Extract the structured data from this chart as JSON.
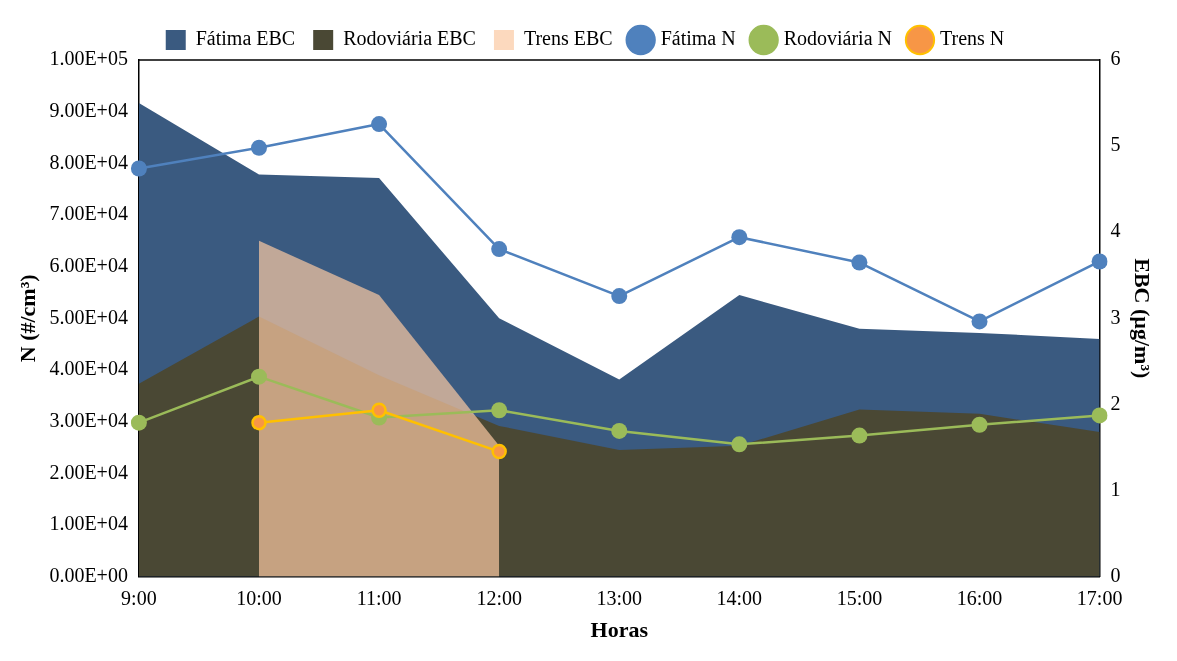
{
  "chart_data": {
    "type": "line",
    "xlabel": "Horas",
    "ylabel": "N (#/cm³)",
    "y2label": "EBC (µg/m³)",
    "categories": [
      "9:00",
      "10:00",
      "11:00",
      "12:00",
      "13:00",
      "14:00",
      "15:00",
      "16:00",
      "17:00"
    ],
    "ylim": [
      0,
      100000
    ],
    "yticks": [
      {
        "value": 0,
        "label": "0.00E+00"
      },
      {
        "value": 10000,
        "label": "1.00E+04"
      },
      {
        "value": 20000,
        "label": "2.00E+04"
      },
      {
        "value": 30000,
        "label": "3.00E+04"
      },
      {
        "value": 40000,
        "label": "4.00E+04"
      },
      {
        "value": 50000,
        "label": "5.00E+04"
      },
      {
        "value": 60000,
        "label": "6.00E+04"
      },
      {
        "value": 70000,
        "label": "7.00E+04"
      },
      {
        "value": 80000,
        "label": "8.00E+04"
      },
      {
        "value": 90000,
        "label": "9.00E+04"
      },
      {
        "value": 100000,
        "label": "1.00E+05"
      }
    ],
    "y2lim": [
      0,
      6
    ],
    "y2ticks": [
      0,
      1,
      2,
      3,
      4,
      5,
      6
    ],
    "grid": false,
    "legend": "top",
    "series": [
      {
        "name": "Fátima EBC",
        "type": "area",
        "axis": "y2",
        "color": "#3a5a80",
        "values": [
          5.5,
          4.67,
          4.63,
          3.0,
          2.29,
          3.27,
          2.88,
          2.83,
          2.76
        ]
      },
      {
        "name": "Rodoviária EBC",
        "type": "area",
        "axis": "y2",
        "color": "#4a4834",
        "values": [
          2.24,
          3.02,
          2.34,
          1.75,
          1.47,
          1.52,
          1.94,
          1.89,
          1.68
        ]
      },
      {
        "name": "Trens EBC",
        "type": "area",
        "axis": "y2",
        "color": "#fbc9a3",
        "values": [
          null,
          3.9,
          3.27,
          1.52,
          null,
          null,
          null,
          null,
          null
        ]
      },
      {
        "name": "Fátima N",
        "marker": "circle",
        "color": "#4f81bd",
        "values": [
          79000,
          83000,
          87600,
          63400,
          54300,
          65700,
          60800,
          49400,
          61000
        ]
      },
      {
        "name": "Rodoviária N",
        "marker": "circle",
        "color": "#9bbb59",
        "values": [
          29800,
          38700,
          30800,
          32200,
          28200,
          25600,
          27300,
          29400,
          31200
        ]
      },
      {
        "name": "Trens N",
        "marker": "circle",
        "color": "#ffc000",
        "values": [
          null,
          29800,
          32200,
          24200,
          null,
          null,
          null,
          null,
          null
        ]
      }
    ]
  }
}
